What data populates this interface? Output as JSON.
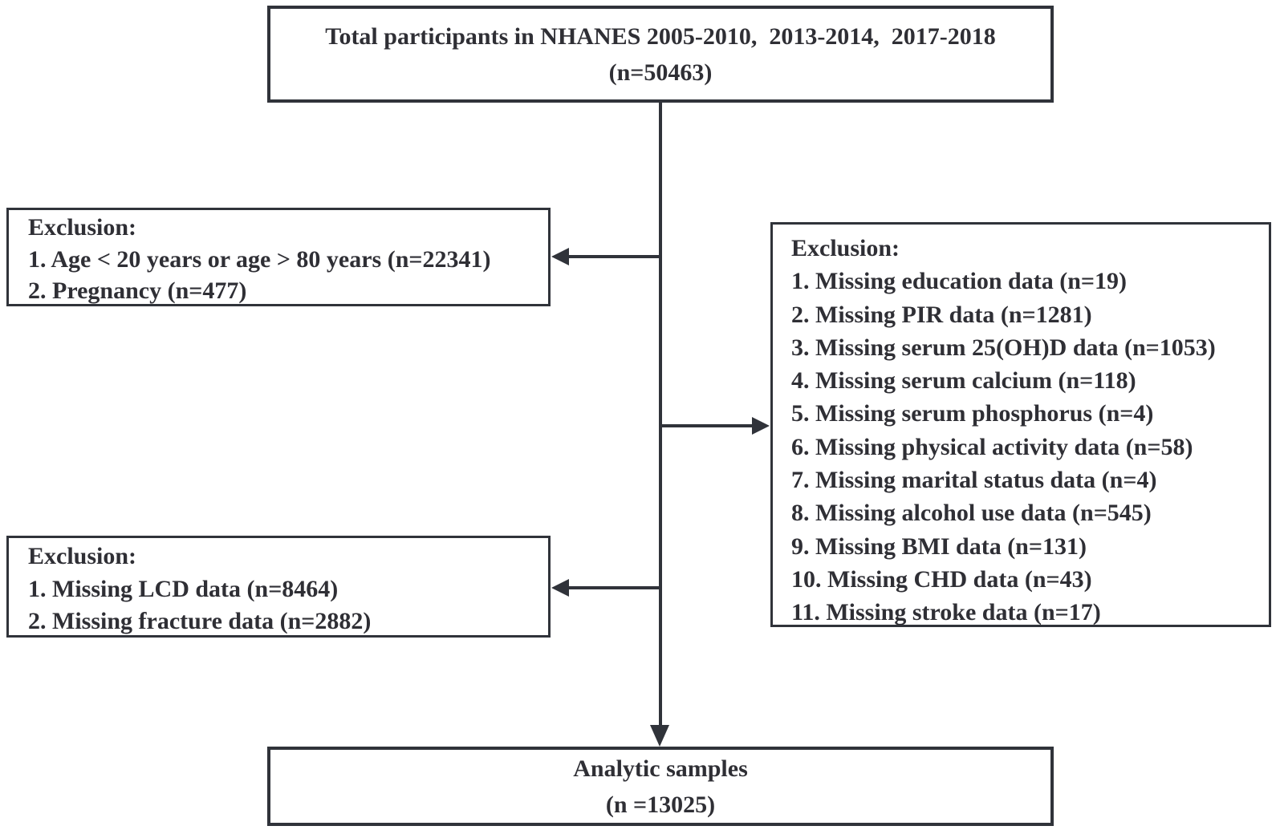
{
  "theme": {
    "line": "#30333a",
    "text": "#2f2f35",
    "bg": "#ffffff"
  },
  "boxes": {
    "top": {
      "line1": "Total participants in NHANES 2005-2010,  2013-2014,  2017-2018",
      "line2": "(n=50463)"
    },
    "exclusion_age": {
      "title": "Exclusion:",
      "items": [
        "1. Age < 20 years or age > 80 years (n=22341)",
        "2. Pregnancy (n=477)"
      ]
    },
    "exclusion_covariates": {
      "title": "Exclusion:",
      "items": [
        "1. Missing education data (n=19)",
        "2. Missing PIR data (n=1281)",
        "3. Missing serum 25(OH)D data (n=1053)",
        "4. Missing serum calcium (n=118)",
        "5. Missing serum phosphorus (n=4)",
        "6. Missing physical activity data (n=58)",
        "7. Missing marital status data (n=4)",
        "8. Missing alcohol use data (n=545)",
        "9. Missing BMI data (n=131)",
        "10. Missing CHD data (n=43)",
        "11. Missing stroke data (n=17)"
      ]
    },
    "exclusion_outcome": {
      "title": "Exclusion:",
      "items": [
        "1. Missing LCD data (n=8464)",
        "2. Missing fracture data (n=2882)"
      ]
    },
    "bottom": {
      "line1": "Analytic samples",
      "line2": "(n =13025)"
    }
  }
}
